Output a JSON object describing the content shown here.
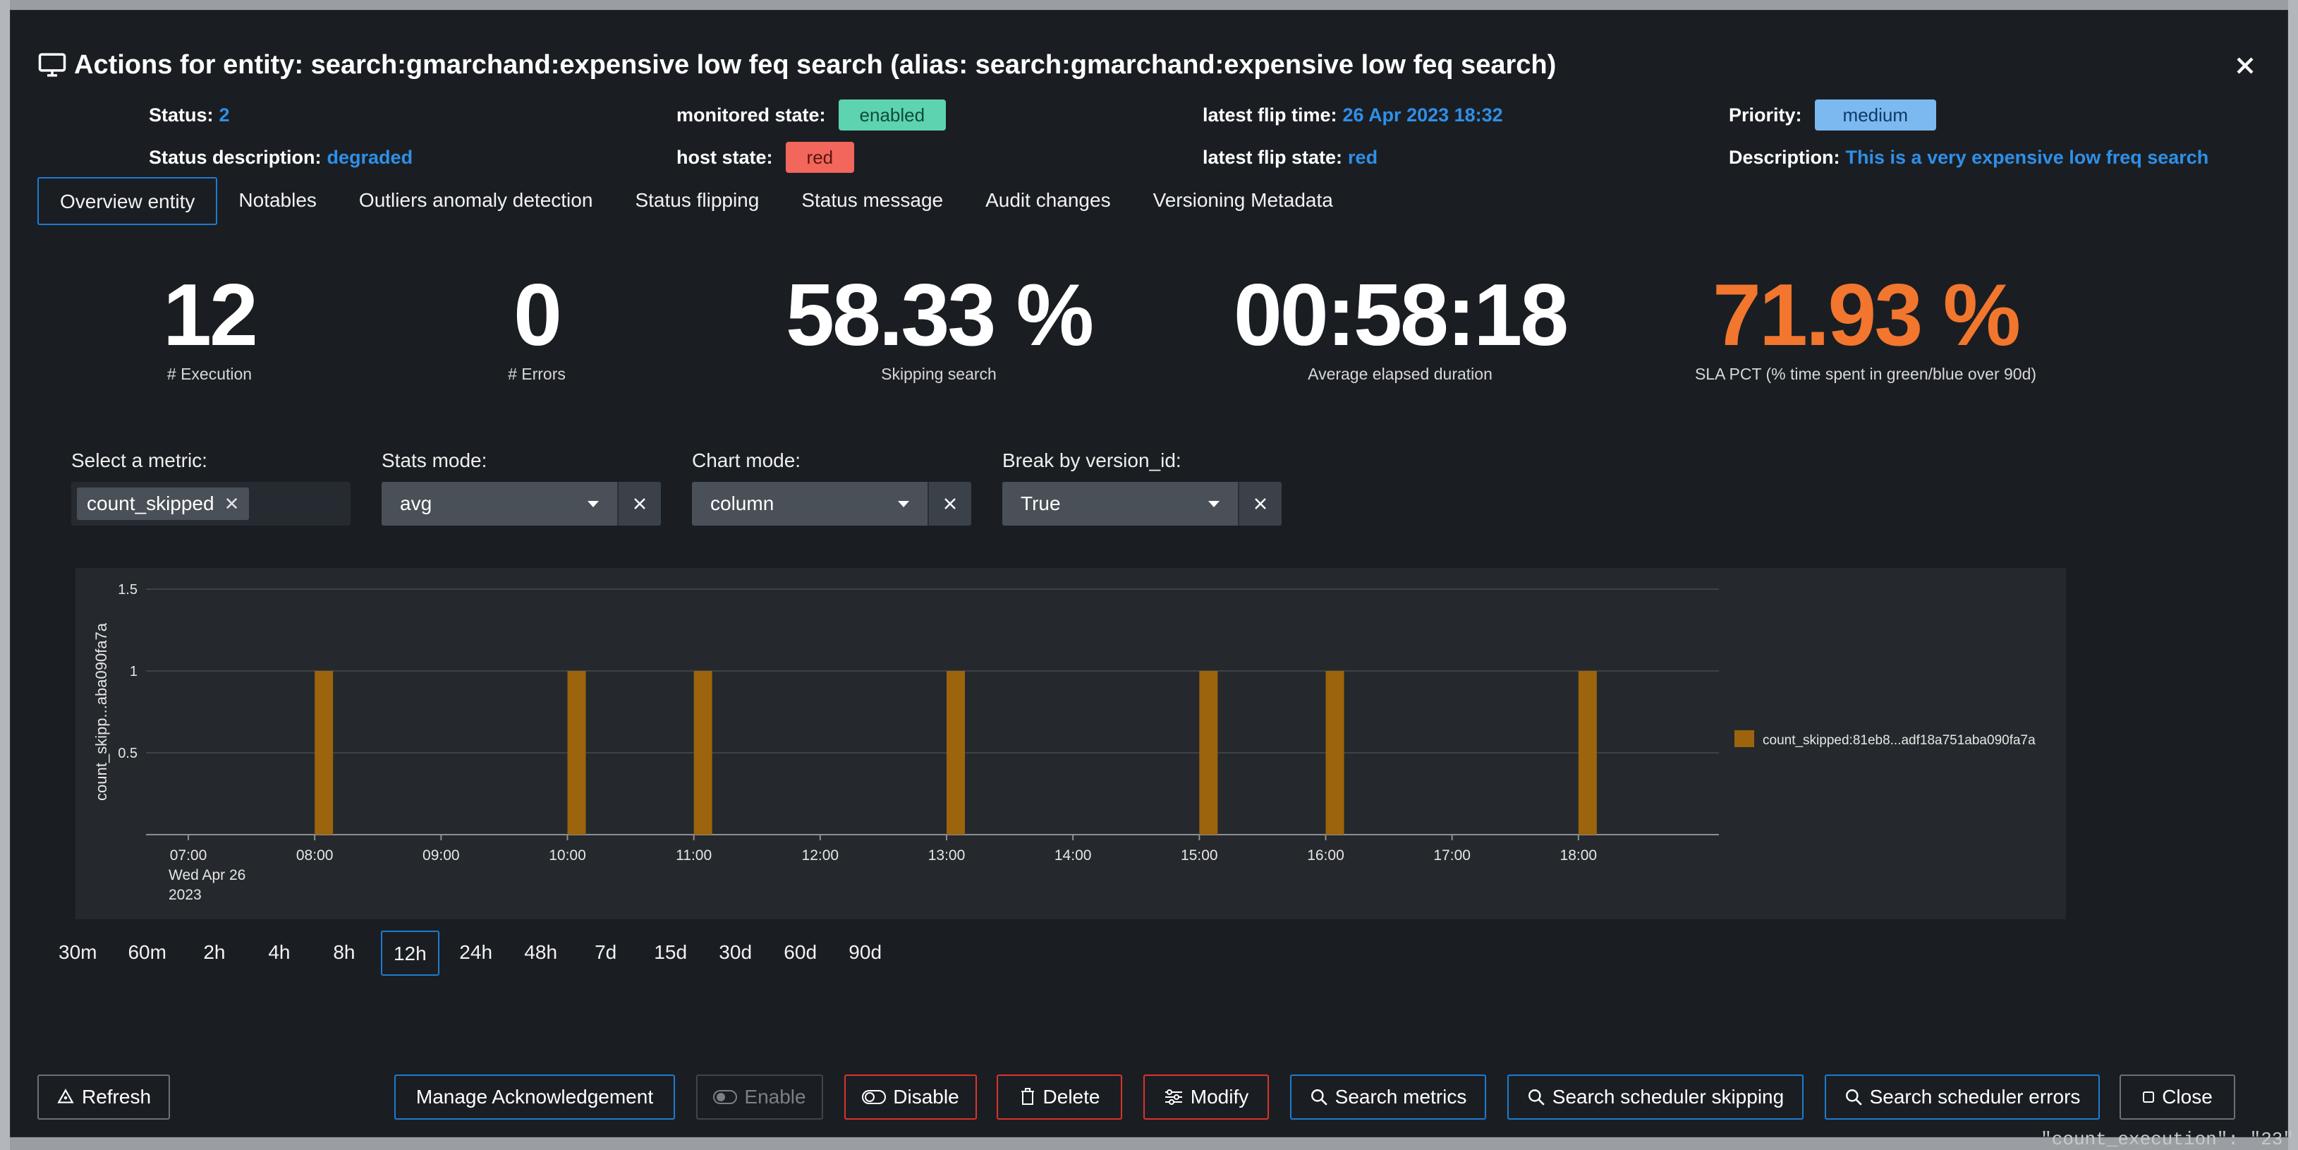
{
  "modal": {
    "title": "Actions for entity: search:gmarchand:expensive low feq search (alias: search:gmarchand:expensive low feq search)",
    "title_icon": "monitor-icon",
    "close_icon": "close-icon"
  },
  "info": {
    "status_label": "Status:",
    "status_value": "2",
    "status_description_label": "Status description:",
    "status_description_value": "degraded",
    "monitored_state_label": "monitored state:",
    "monitored_state_value": "enabled",
    "host_state_label": "host state:",
    "host_state_value": "red",
    "latest_flip_time_label": "latest flip time:",
    "latest_flip_time_value": "26 Apr 2023 18:32",
    "latest_flip_state_label": "latest flip state:",
    "latest_flip_state_value": "red",
    "priority_label": "Priority:",
    "priority_value": "medium",
    "description_label": "Description:",
    "description_value": "This is a very expensive low freq search"
  },
  "tabs": [
    {
      "label": "Overview entity",
      "active": true
    },
    {
      "label": "Notables",
      "active": false
    },
    {
      "label": "Outliers anomaly detection",
      "active": false
    },
    {
      "label": "Status flipping",
      "active": false
    },
    {
      "label": "Status message",
      "active": false
    },
    {
      "label": "Audit changes",
      "active": false
    },
    {
      "label": "Versioning Metadata",
      "active": false
    }
  ],
  "kpis": [
    {
      "value": "12",
      "label": "# Execution"
    },
    {
      "value": "0",
      "label": "# Errors"
    },
    {
      "value": "58.33 %",
      "label": "Skipping search"
    },
    {
      "value": "00:58:18",
      "label": "Average elapsed duration"
    },
    {
      "value": "71.93 %",
      "label": "SLA PCT (% time spent in green/blue over 90d)"
    }
  ],
  "controls": {
    "metric_label": "Select a metric:",
    "metric_chip": "count_skipped",
    "stats_mode_label": "Stats mode:",
    "stats_mode_value": "avg",
    "chart_mode_label": "Chart mode:",
    "chart_mode_value": "column",
    "break_by_label": "Break by version_id:",
    "break_by_value": "True"
  },
  "chart_data": {
    "type": "bar",
    "ylabel": "count_skipp...aba090fa7a",
    "xlabel": "",
    "ylim": [
      0,
      1.5
    ],
    "yticks": [
      "1.5",
      "1",
      "0.5"
    ],
    "x_ticks": [
      "07:00",
      "08:00",
      "09:00",
      "10:00",
      "11:00",
      "12:00",
      "13:00",
      "14:00",
      "15:00",
      "16:00",
      "17:00",
      "18:00"
    ],
    "x_first_tick_sublabel": [
      "Wed Apr 26",
      "2023"
    ],
    "x_start": "07:00",
    "x_end": "19:00",
    "series": [
      {
        "name": "count_skipped:81eb8...adf18a751aba090fa7a",
        "color": "#9c640c",
        "points": [
          {
            "x": "08:00",
            "y": 1
          },
          {
            "x": "10:00",
            "y": 1
          },
          {
            "x": "11:00",
            "y": 1
          },
          {
            "x": "13:00",
            "y": 1
          },
          {
            "x": "15:00",
            "y": 1
          },
          {
            "x": "16:00",
            "y": 1
          },
          {
            "x": "18:00",
            "y": 1
          }
        ]
      }
    ],
    "legend": "right",
    "grid": true
  },
  "time_ranges": [
    {
      "label": "30m",
      "active": false
    },
    {
      "label": "60m",
      "active": false
    },
    {
      "label": "2h",
      "active": false
    },
    {
      "label": "4h",
      "active": false
    },
    {
      "label": "8h",
      "active": false
    },
    {
      "label": "12h",
      "active": true
    },
    {
      "label": "24h",
      "active": false
    },
    {
      "label": "48h",
      "active": false
    },
    {
      "label": "7d",
      "active": false
    },
    {
      "label": "15d",
      "active": false
    },
    {
      "label": "30d",
      "active": false
    },
    {
      "label": "60d",
      "active": false
    },
    {
      "label": "90d",
      "active": false
    }
  ],
  "footer": {
    "refresh": "Refresh",
    "manage_ack": "Manage Acknowledgement",
    "enable": "Enable",
    "disable": "Disable",
    "delete": "Delete",
    "modify": "Modify",
    "search_metrics": "Search metrics",
    "search_skipping": "Search scheduler skipping",
    "search_errors": "Search scheduler errors",
    "close": "Close"
  },
  "colors": {
    "accent_blue": "#2f8fe8",
    "kpi_orange": "#f2762e",
    "danger_red": "#d9342b",
    "bar_color": "#9c640c"
  },
  "backdrop_text": "\"count_execution\": \"23\""
}
